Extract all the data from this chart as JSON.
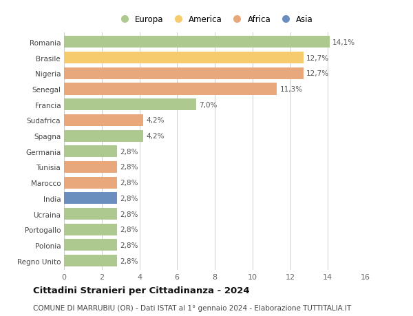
{
  "countries": [
    "Romania",
    "Brasile",
    "Nigeria",
    "Senegal",
    "Francia",
    "Sudafrica",
    "Spagna",
    "Germania",
    "Tunisia",
    "Marocco",
    "India",
    "Ucraina",
    "Portogallo",
    "Polonia",
    "Regno Unito"
  ],
  "values": [
    14.1,
    12.7,
    12.7,
    11.3,
    7.0,
    4.2,
    4.2,
    2.8,
    2.8,
    2.8,
    2.8,
    2.8,
    2.8,
    2.8,
    2.8
  ],
  "labels": [
    "14,1%",
    "12,7%",
    "12,7%",
    "11,3%",
    "7,0%",
    "4,2%",
    "4,2%",
    "2,8%",
    "2,8%",
    "2,8%",
    "2,8%",
    "2,8%",
    "2,8%",
    "2,8%",
    "2,8%"
  ],
  "continents": [
    "Europa",
    "America",
    "Africa",
    "Africa",
    "Europa",
    "Africa",
    "Europa",
    "Europa",
    "Africa",
    "Africa",
    "Asia",
    "Europa",
    "Europa",
    "Europa",
    "Europa"
  ],
  "colors": {
    "Europa": "#adc990",
    "America": "#f5cb6e",
    "Africa": "#e8a87c",
    "Asia": "#6a8fbf"
  },
  "legend_order": [
    "Europa",
    "America",
    "Africa",
    "Asia"
  ],
  "title": "Cittadini Stranieri per Cittadinanza - 2024",
  "subtitle": "COMUNE DI MARRUBIU (OR) - Dati ISTAT al 1° gennaio 2024 - Elaborazione TUTTITALIA.IT",
  "xlim": [
    0,
    16
  ],
  "xticks": [
    0,
    2,
    4,
    6,
    8,
    10,
    12,
    14,
    16
  ],
  "bg_color": "#ffffff",
  "grid_color": "#cccccc",
  "bar_height": 0.75,
  "label_fontsize": 7.5,
  "title_fontsize": 9.5,
  "subtitle_fontsize": 7.5,
  "axis_label_fontsize": 8,
  "legend_fontsize": 8.5
}
